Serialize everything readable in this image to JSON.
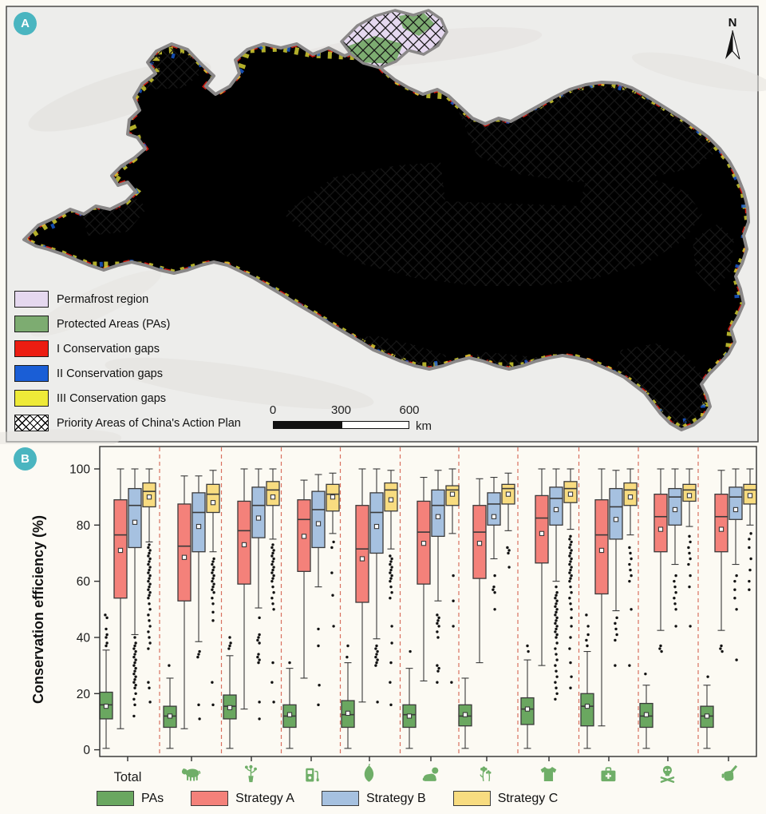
{
  "figure": {
    "panel_a": {
      "label": "A",
      "north_label": "N",
      "legend": [
        {
          "label": "Permafrost region",
          "color": "#e5d8ef",
          "pattern": "fill"
        },
        {
          "label": "Protected Areas (PAs)",
          "color": "#7dac71",
          "pattern": "fill"
        },
        {
          "label": "I Conservation gaps",
          "color": "#ec1d12",
          "pattern": "fill"
        },
        {
          "label": "II Conservation gaps",
          "color": "#1a5ed6",
          "pattern": "fill"
        },
        {
          "label": "III Conservation gaps",
          "color": "#eeea38",
          "pattern": "fill"
        },
        {
          "label": "Priority Areas of China's Action Plan",
          "color": "#ffffff",
          "pattern": "crosshatch"
        }
      ],
      "scale_bar": {
        "tick_labels": [
          "0",
          "300",
          "600"
        ],
        "unit": "km"
      }
    },
    "panel_b": {
      "label": "B"
    }
  },
  "colors": {
    "pas_box": "#6aa760",
    "strategy_a_box": "#f4817a",
    "strategy_b_box": "#a6c1e0",
    "strategy_c_box": "#f8dc80",
    "box_stroke": "#3a3a3a",
    "separator": "#d9705f",
    "panel_badge": "#4ab5c0",
    "map_permafrost": "#e5d8ef",
    "map_pa": "#7dac71",
    "map_gap1": "#ec1d12",
    "map_gap2": "#1a5ed6",
    "map_gap3": "#eeea38",
    "map_boundary": "#8a8888",
    "map_bg": "#ededeb",
    "icon_green": "#6fae68",
    "plot_bg": "#fcfaf3"
  },
  "chart_data": {
    "type": "box",
    "ylabel": "Conservation efficiency (%)",
    "ylim": [
      0,
      100
    ],
    "yticks": [
      0,
      20,
      40,
      60,
      80,
      100
    ],
    "legend_position": "bottom",
    "grid": false,
    "series_order": [
      "PAs",
      "Strategy A",
      "Strategy B",
      "Strategy C"
    ],
    "legend": [
      {
        "label": "PAs",
        "color": "#6aa760"
      },
      {
        "label": "Strategy A",
        "color": "#f4817a"
      },
      {
        "label": "Strategy B",
        "color": "#a6c1e0"
      },
      {
        "label": "Strategy C",
        "color": "#f8dc80"
      }
    ],
    "categories": [
      {
        "label": "Total",
        "icon": null
      },
      {
        "label": "",
        "icon": "cow"
      },
      {
        "label": "",
        "icon": "potted-plant"
      },
      {
        "label": "",
        "icon": "fuel-pump"
      },
      {
        "label": "",
        "icon": "leaf"
      },
      {
        "label": "",
        "icon": "baby"
      },
      {
        "label": "",
        "icon": "flowers"
      },
      {
        "label": "",
        "icon": "sweater"
      },
      {
        "label": "",
        "icon": "first-aid-kit"
      },
      {
        "label": "",
        "icon": "skull-crossbones"
      },
      {
        "label": "",
        "icon": "hand-with-pen"
      }
    ],
    "groups": [
      {
        "category": "Total",
        "boxes": {
          "PAs": {
            "whislo": 0.5,
            "q1": 11,
            "med": 16,
            "q3": 20.5,
            "whishi": 35.5,
            "mean": 15.5,
            "outliers": [
              37,
              38,
              40,
              41,
              43,
              47,
              48
            ]
          },
          "Strategy A": {
            "whislo": 7.5,
            "q1": 54,
            "med": 76.5,
            "q3": 89,
            "whishi": 100,
            "mean": 71,
            "outliers": []
          },
          "Strategy B": {
            "whislo": 41,
            "q1": 72,
            "med": 87,
            "q3": 93,
            "whishi": 100,
            "mean": 81,
            "outliers": [
              40,
              38,
              37,
              36,
              35,
              34,
              33,
              32,
              31,
              30,
              29,
              28,
              27,
              26,
              25,
              24,
              23,
              22,
              20,
              18,
              16,
              12
            ]
          },
          "Strategy C": {
            "whislo": 74,
            "q1": 86.5,
            "med": 92,
            "q3": 95,
            "whishi": 100,
            "mean": 90,
            "outliers": [
              73,
              72,
              71,
              70,
              69,
              68,
              67,
              66,
              65,
              64,
              63,
              62,
              61,
              60,
              59,
              58,
              57,
              56,
              55,
              54,
              52,
              50,
              48,
              46,
              44,
              42,
              40,
              38,
              36,
              24,
              22,
              17
            ]
          }
        }
      },
      {
        "category": "livestock",
        "boxes": {
          "PAs": {
            "whislo": 0.5,
            "q1": 8,
            "med": 12,
            "q3": 15.5,
            "whishi": 25.5,
            "mean": 12,
            "outliers": [
              30
            ]
          },
          "Strategy A": {
            "whislo": 7.5,
            "q1": 53,
            "med": 72.5,
            "q3": 87.5,
            "whishi": 97.5,
            "mean": 68.5,
            "outliers": []
          },
          "Strategy B": {
            "whislo": 38.5,
            "q1": 70.5,
            "med": 84.5,
            "q3": 91.5,
            "whishi": 97.5,
            "mean": 79.5,
            "outliers": [
              35,
              34,
              33,
              16,
              11
            ]
          },
          "Strategy C": {
            "whislo": 70.5,
            "q1": 84.5,
            "med": 91,
            "q3": 94.5,
            "whishi": 99.5,
            "mean": 88,
            "outliers": [
              68,
              67,
              66,
              65,
              64,
              63,
              62,
              61,
              60,
              59,
              58,
              57,
              56,
              54,
              52,
              49,
              46,
              24,
              16
            ]
          }
        }
      },
      {
        "category": "plants",
        "boxes": {
          "PAs": {
            "whislo": 0.5,
            "q1": 11,
            "med": 15.5,
            "q3": 19.5,
            "whishi": 33.5,
            "mean": 15,
            "outliers": [
              36,
              37,
              38,
              40
            ]
          },
          "Strategy A": {
            "whislo": 14.5,
            "q1": 59,
            "med": 78,
            "q3": 88.5,
            "whishi": 100,
            "mean": 73,
            "outliers": []
          },
          "Strategy B": {
            "whislo": 50.5,
            "q1": 75.5,
            "med": 87,
            "q3": 93.5,
            "whishi": 100,
            "mean": 82.5,
            "outliers": [
              47,
              41,
              40,
              39,
              38,
              34,
              33,
              32,
              31,
              17,
              11
            ]
          },
          "Strategy C": {
            "whislo": 75,
            "q1": 87,
            "med": 92.5,
            "q3": 95.5,
            "whishi": 100,
            "mean": 90,
            "outliers": [
              73,
              72,
              71,
              70,
              69,
              68,
              67,
              66,
              65,
              64,
              63,
              62,
              61,
              60,
              58,
              56,
              54,
              52,
              50,
              31,
              24,
              17
            ]
          }
        }
      },
      {
        "category": "energy",
        "boxes": {
          "PAs": {
            "whislo": 0.5,
            "q1": 8,
            "med": 12,
            "q3": 16,
            "whishi": 29,
            "mean": 12.5,
            "outliers": [
              31
            ]
          },
          "Strategy A": {
            "whislo": 25.5,
            "q1": 63.5,
            "med": 82,
            "q3": 89,
            "whishi": 96,
            "mean": 76,
            "outliers": []
          },
          "Strategy B": {
            "whislo": 58,
            "q1": 72,
            "med": 85.5,
            "q3": 92,
            "whishi": 98,
            "mean": 80.5,
            "outliers": [
              43,
              37,
              23,
              16
            ]
          },
          "Strategy C": {
            "whislo": 77,
            "q1": 85,
            "med": 91,
            "q3": 94.5,
            "whishi": 98.5,
            "mean": 90,
            "outliers": [
              74,
              72,
              63,
              55,
              44
            ]
          }
        }
      },
      {
        "category": "food",
        "boxes": {
          "PAs": {
            "whislo": 0.5,
            "q1": 8,
            "med": 12.5,
            "q3": 17.5,
            "whishi": 31,
            "mean": 13,
            "outliers": [
              33,
              37
            ]
          },
          "Strategy A": {
            "whislo": 17,
            "q1": 52.5,
            "med": 71.5,
            "q3": 87,
            "whishi": 100,
            "mean": 68,
            "outliers": []
          },
          "Strategy B": {
            "whislo": 39.5,
            "q1": 70,
            "med": 84.5,
            "q3": 91.5,
            "whishi": 100,
            "mean": 79.5,
            "outliers": [
              37,
              36,
              35,
              34,
              33,
              32,
              31,
              30,
              17
            ]
          },
          "Strategy C": {
            "whislo": 71.5,
            "q1": 85,
            "med": 92.5,
            "q3": 95,
            "whishi": 99.5,
            "mean": 89,
            "outliers": [
              69,
              68,
              67,
              66,
              65,
              64,
              63,
              62,
              61,
              60,
              58,
              56,
              54,
              44,
              38,
              31,
              24,
              16
            ]
          }
        }
      },
      {
        "category": "children",
        "boxes": {
          "PAs": {
            "whislo": 0.5,
            "q1": 8,
            "med": 12.5,
            "q3": 16,
            "whishi": 29,
            "mean": 12,
            "outliers": [
              35
            ]
          },
          "Strategy A": {
            "whislo": 24.5,
            "q1": 59,
            "med": 77.5,
            "q3": 88.5,
            "whishi": 97,
            "mean": 73.5,
            "outliers": []
          },
          "Strategy B": {
            "whislo": 53,
            "q1": 76,
            "med": 87,
            "q3": 92.5,
            "whishi": 99.5,
            "mean": 83,
            "outliers": [
              48,
              47,
              46,
              45,
              44,
              42,
              40,
              30,
              29,
              28,
              24
            ]
          },
          "Strategy C": {
            "whislo": 77,
            "q1": 87,
            "med": 92.5,
            "q3": 94,
            "whishi": 100,
            "mean": 91,
            "outliers": [
              62,
              53,
              44,
              24
            ]
          }
        }
      },
      {
        "category": "ornamental",
        "boxes": {
          "PAs": {
            "whislo": 0.5,
            "q1": 8.5,
            "med": 12,
            "q3": 16,
            "whishi": 25.5,
            "mean": 12.5,
            "outliers": []
          },
          "Strategy A": {
            "whislo": 31,
            "q1": 61,
            "med": 77.5,
            "q3": 87,
            "whishi": 96.5,
            "mean": 73.5,
            "outliers": []
          },
          "Strategy B": {
            "whislo": 68,
            "q1": 80,
            "med": 87.5,
            "q3": 91.5,
            "whishi": 97,
            "mean": 83,
            "outliers": [
              62,
              58,
              57,
              56,
              50
            ]
          },
          "Strategy C": {
            "whislo": 78,
            "q1": 87.5,
            "med": 93,
            "q3": 94.5,
            "whishi": 98.5,
            "mean": 91,
            "outliers": [
              72,
              71,
              70,
              65
            ]
          }
        }
      },
      {
        "category": "clothing",
        "boxes": {
          "PAs": {
            "whislo": 0.5,
            "q1": 9,
            "med": 14.5,
            "q3": 18.5,
            "whishi": 32,
            "mean": 14.5,
            "outliers": [
              35,
              37
            ]
          },
          "Strategy A": {
            "whislo": 30,
            "q1": 66.5,
            "med": 82.5,
            "q3": 90.5,
            "whishi": 100,
            "mean": 77,
            "outliers": []
          },
          "Strategy B": {
            "whislo": 60,
            "q1": 80,
            "med": 89.5,
            "q3": 93.5,
            "whishi": 100,
            "mean": 85.5,
            "outliers": [
              58,
              56,
              55,
              54,
              53,
              52,
              51,
              50,
              49,
              48,
              47,
              46,
              45,
              44,
              43,
              42,
              41,
              40,
              38,
              36,
              34,
              32,
              30,
              28,
              26,
              24,
              22,
              20,
              18
            ]
          },
          "Strategy C": {
            "whislo": 78.5,
            "q1": 88,
            "med": 93,
            "q3": 95.5,
            "whishi": 100,
            "mean": 91,
            "outliers": [
              76,
              75,
              74,
              73,
              72,
              71,
              70,
              69,
              68,
              67,
              66,
              65,
              64,
              63,
              62,
              61,
              60,
              58,
              56,
              54,
              52,
              50,
              47,
              44,
              40,
              36,
              31,
              26,
              22
            ]
          }
        }
      },
      {
        "category": "medicine",
        "boxes": {
          "PAs": {
            "whislo": 0.5,
            "q1": 8.5,
            "med": 15.5,
            "q3": 20,
            "whishi": 35,
            "mean": 15.5,
            "outliers": [
              37,
              39,
              41,
              44,
              48
            ]
          },
          "Strategy A": {
            "whislo": 8.5,
            "q1": 55.5,
            "med": 76.5,
            "q3": 89,
            "whishi": 100,
            "mean": 71,
            "outliers": []
          },
          "Strategy B": {
            "whislo": 49.5,
            "q1": 75,
            "med": 86.5,
            "q3": 93,
            "whishi": 99.5,
            "mean": 82,
            "outliers": [
              47,
              45,
              43,
              41,
              39,
              30
            ]
          },
          "Strategy C": {
            "whislo": 76.5,
            "q1": 87,
            "med": 92.5,
            "q3": 95,
            "whishi": 100,
            "mean": 90,
            "outliers": [
              72,
              70,
              68,
              66,
              64,
              62,
              60,
              50,
              30
            ]
          }
        }
      },
      {
        "category": "poison",
        "boxes": {
          "PAs": {
            "whislo": 0.5,
            "q1": 8,
            "med": 12,
            "q3": 16.5,
            "whishi": 23,
            "mean": 12.5,
            "outliers": [
              27
            ]
          },
          "Strategy A": {
            "whislo": 42.5,
            "q1": 70.5,
            "med": 83,
            "q3": 91,
            "whishi": 100,
            "mean": 78.5,
            "outliers": [
              37,
              36,
              35
            ]
          },
          "Strategy B": {
            "whislo": 66,
            "q1": 80,
            "med": 90,
            "q3": 93,
            "whishi": 100,
            "mean": 85.5,
            "outliers": [
              62,
              60,
              58,
              56,
              54,
              52,
              50,
              44
            ]
          },
          "Strategy C": {
            "whislo": 79.5,
            "q1": 88.5,
            "med": 92.5,
            "q3": 94.5,
            "whishi": 100,
            "mean": 90.5,
            "outliers": [
              76,
              74,
              72,
              70,
              68,
              66,
              62,
              58,
              44
            ]
          }
        }
      },
      {
        "category": "handicraft",
        "boxes": {
          "PAs": {
            "whislo": 0.5,
            "q1": 8,
            "med": 12,
            "q3": 15.5,
            "whishi": 23,
            "mean": 12,
            "outliers": [
              26
            ]
          },
          "Strategy A": {
            "whislo": 42.5,
            "q1": 70.5,
            "med": 83,
            "q3": 91,
            "whishi": 99.5,
            "mean": 78.5,
            "outliers": [
              37,
              36,
              35
            ]
          },
          "Strategy B": {
            "whislo": 66,
            "q1": 82,
            "med": 90,
            "q3": 93.5,
            "whishi": 100,
            "mean": 85.5,
            "outliers": [
              62,
              60,
              57,
              54,
              50,
              32
            ]
          },
          "Strategy C": {
            "whislo": 80,
            "q1": 87.5,
            "med": 92.5,
            "q3": 94.5,
            "whishi": 100,
            "mean": 90.5,
            "outliers": [
              77,
              75,
              72,
              68,
              64,
              60,
              57
            ]
          }
        }
      }
    ]
  }
}
